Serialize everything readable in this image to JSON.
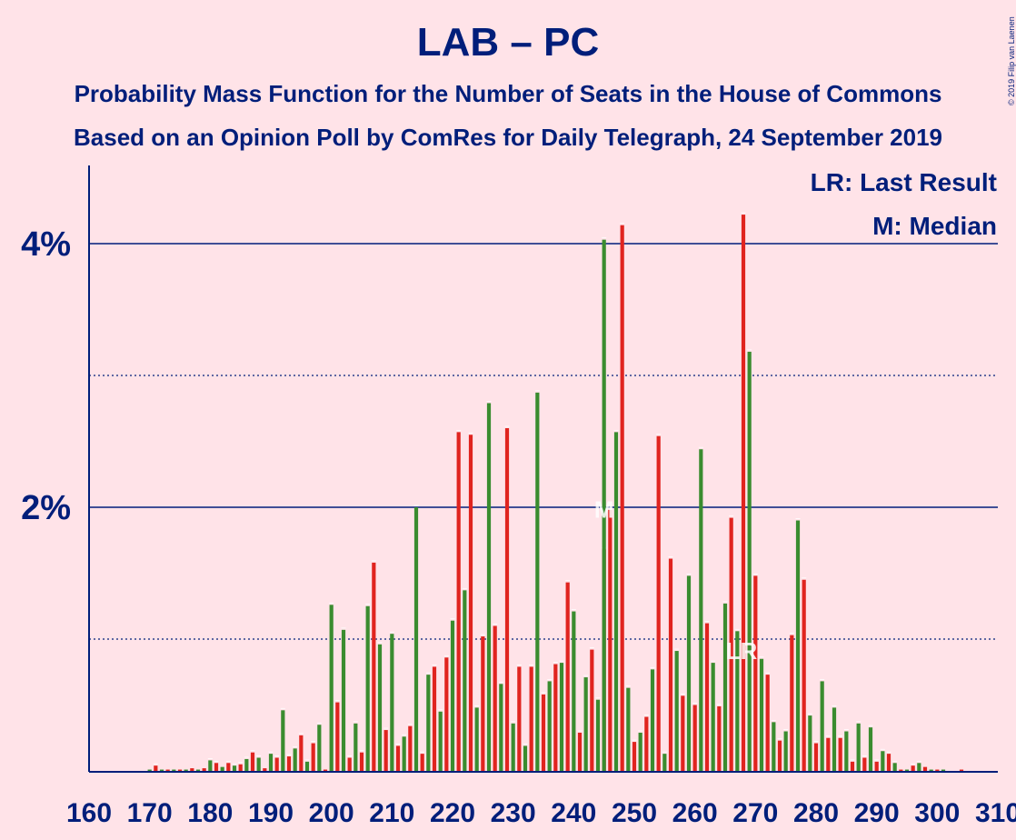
{
  "title": "LAB – PC",
  "subtitle": "Probability Mass Function for the Number of Seats in the House of Commons",
  "subtitle2": "Based on an Opinion Poll by ComRes for Daily Telegraph, 24 September 2019",
  "copyright": "© 2019 Filip van Laenen",
  "legend": {
    "last_result": "LR: Last Result",
    "median": "M: Median"
  },
  "colors": {
    "background": "#FFE3E8",
    "text": "#001E7A",
    "red": "#E0241F",
    "green": "#3A8C2F"
  },
  "chart_data": {
    "type": "bar",
    "x_label_ticks": [
      160,
      170,
      180,
      190,
      200,
      210,
      220,
      230,
      240,
      250,
      260,
      270,
      280,
      290,
      300,
      310
    ],
    "y_ticks": [
      {
        "value": 2,
        "label": "2%"
      },
      {
        "value": 4,
        "label": "4%"
      }
    ],
    "y_dotted": [
      1,
      3
    ],
    "xlim": [
      160,
      310
    ],
    "ylim": [
      0,
      4.6
    ],
    "median_seat": 245,
    "median_label": "M",
    "last_result_seat": 268,
    "last_result_label": "LR",
    "series": [
      {
        "color_key": "red",
        "points": [
          [
            171,
            0.04
          ],
          [
            173,
            0.01
          ],
          [
            175,
            0.01
          ],
          [
            177,
            0.02
          ],
          [
            179,
            0.02
          ],
          [
            181,
            0.06
          ],
          [
            183,
            0.06
          ],
          [
            185,
            0.05
          ],
          [
            187,
            0.14
          ],
          [
            189,
            0.02
          ],
          [
            191,
            0.1
          ],
          [
            193,
            0.11
          ],
          [
            195,
            0.27
          ],
          [
            197,
            0.21
          ],
          [
            199,
            0.01
          ],
          [
            201,
            0.52
          ],
          [
            203,
            0.1
          ],
          [
            205,
            0.14
          ],
          [
            207,
            1.58
          ],
          [
            209,
            0.31
          ],
          [
            211,
            0.19
          ],
          [
            213,
            0.34
          ],
          [
            215,
            0.13
          ],
          [
            217,
            0.79
          ],
          [
            219,
            0.86
          ],
          [
            221,
            2.57
          ],
          [
            223,
            2.55
          ],
          [
            225,
            1.02
          ],
          [
            227,
            1.1
          ],
          [
            229,
            2.6
          ],
          [
            231,
            0.79
          ],
          [
            233,
            0.79
          ],
          [
            235,
            0.58
          ],
          [
            237,
            0.81
          ],
          [
            239,
            1.43
          ],
          [
            241,
            0.29
          ],
          [
            243,
            0.92
          ],
          [
            245,
            1.68
          ],
          [
            246,
            1.98
          ],
          [
            248,
            4.14
          ],
          [
            250,
            0.22
          ],
          [
            252,
            0.41
          ],
          [
            254,
            2.54
          ],
          [
            256,
            1.61
          ],
          [
            258,
            0.57
          ],
          [
            260,
            0.5
          ],
          [
            262,
            1.12
          ],
          [
            264,
            0.49
          ],
          [
            266,
            1.92
          ],
          [
            268,
            4.22
          ],
          [
            270,
            1.48
          ],
          [
            272,
            0.73
          ],
          [
            274,
            0.23
          ],
          [
            276,
            1.03
          ],
          [
            278,
            1.45
          ],
          [
            280,
            0.21
          ],
          [
            282,
            0.25
          ],
          [
            284,
            0.25
          ],
          [
            286,
            0.07
          ],
          [
            288,
            0.1
          ],
          [
            290,
            0.07
          ],
          [
            292,
            0.13
          ],
          [
            294,
            0.01
          ],
          [
            296,
            0.04
          ],
          [
            298,
            0.03
          ],
          [
            300,
            0.01
          ],
          [
            304,
            0.01
          ]
        ]
      },
      {
        "color_key": "green",
        "points": [
          [
            170,
            0.01
          ],
          [
            172,
            0.01
          ],
          [
            174,
            0.01
          ],
          [
            176,
            0.01
          ],
          [
            178,
            0.01
          ],
          [
            180,
            0.08
          ],
          [
            182,
            0.03
          ],
          [
            184,
            0.04
          ],
          [
            186,
            0.09
          ],
          [
            188,
            0.1
          ],
          [
            190,
            0.13
          ],
          [
            192,
            0.46
          ],
          [
            194,
            0.17
          ],
          [
            196,
            0.07
          ],
          [
            198,
            0.35
          ],
          [
            200,
            1.26
          ],
          [
            202,
            1.07
          ],
          [
            204,
            0.36
          ],
          [
            206,
            1.25
          ],
          [
            208,
            0.96
          ],
          [
            210,
            1.04
          ],
          [
            212,
            0.26
          ],
          [
            214,
            2.0
          ],
          [
            216,
            0.73
          ],
          [
            218,
            0.45
          ],
          [
            220,
            1.14
          ],
          [
            222,
            1.37
          ],
          [
            224,
            0.48
          ],
          [
            226,
            2.79
          ],
          [
            228,
            0.66
          ],
          [
            230,
            0.36
          ],
          [
            232,
            0.19
          ],
          [
            234,
            2.87
          ],
          [
            236,
            0.68
          ],
          [
            238,
            0.82
          ],
          [
            240,
            1.21
          ],
          [
            242,
            0.71
          ],
          [
            244,
            0.54
          ],
          [
            245,
            4.03
          ],
          [
            247,
            2.57
          ],
          [
            249,
            0.63
          ],
          [
            251,
            0.29
          ],
          [
            253,
            0.77
          ],
          [
            255,
            0.13
          ],
          [
            257,
            0.91
          ],
          [
            259,
            1.48
          ],
          [
            261,
            2.44
          ],
          [
            263,
            0.82
          ],
          [
            265,
            1.27
          ],
          [
            267,
            1.06
          ],
          [
            269,
            3.18
          ],
          [
            271,
            0.85
          ],
          [
            273,
            0.37
          ],
          [
            275,
            0.3
          ],
          [
            277,
            1.9
          ],
          [
            279,
            0.42
          ],
          [
            281,
            0.68
          ],
          [
            283,
            0.48
          ],
          [
            285,
            0.3
          ],
          [
            287,
            0.36
          ],
          [
            289,
            0.33
          ],
          [
            291,
            0.15
          ],
          [
            293,
            0.06
          ],
          [
            295,
            0.01
          ],
          [
            297,
            0.06
          ],
          [
            299,
            0.01
          ],
          [
            301,
            0.01
          ]
        ]
      }
    ]
  }
}
